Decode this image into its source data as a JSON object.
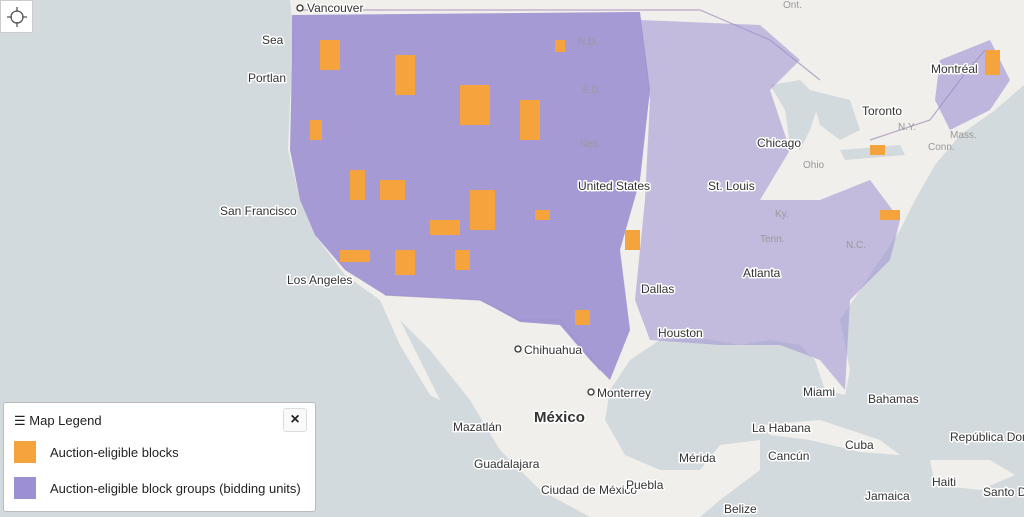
{
  "map": {
    "labels": [
      "Vancouver",
      "Sea",
      "Portlan",
      "San Francisco",
      "Los Angeles",
      "Chihuahua",
      "Monterrey",
      "México",
      "Mazatlán",
      "Guadalajara",
      "Ciudad de México",
      "Puebla",
      "Mérida",
      "Cancún",
      "La Habana",
      "Cuba",
      "Jamaica",
      "Haiti",
      "República Dominicana",
      "Santo D",
      "Belize",
      "Bahamas",
      "Miami",
      "Houston",
      "Dallas",
      "Atlanta",
      "Chicago",
      "Toronto",
      "Montréal",
      "Ont.",
      "N.Y.",
      "Mass.",
      "Conn.",
      "Ohio",
      "N.C.",
      "Tenn.",
      "Ky.",
      "N.D.",
      "S.D.",
      "Neb.",
      "United States",
      "St. Louis"
    ]
  },
  "legend": {
    "title": "Map Legend",
    "close": "×",
    "items": [
      {
        "label": "Auction-eligible blocks",
        "color": "#f5a33c"
      },
      {
        "label": "Auction-eligible block groups (bidding units)",
        "color": "#9d90d2"
      }
    ]
  }
}
